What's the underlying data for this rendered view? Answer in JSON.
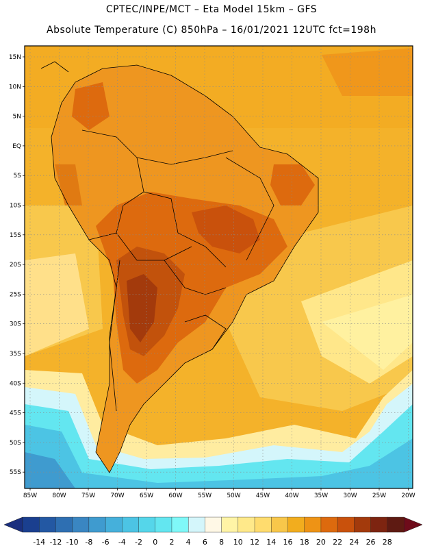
{
  "header": {
    "line1": "CPTEC/INPE/MCT –   Eta Model 15km – GFS",
    "line2": "Absolute Temperature (C) 850hPa – 16/01/2021 12UTC fct=198h"
  },
  "map": {
    "lat_labels": [
      "15N",
      "10N",
      "5N",
      "EQ",
      "5S",
      "10S",
      "15S",
      "20S",
      "25S",
      "30S",
      "35S",
      "40S",
      "45S",
      "50S",
      "55S"
    ],
    "lon_labels": [
      "85W",
      "80W",
      "75W",
      "70W",
      "65W",
      "60W",
      "55W",
      "50W",
      "45W",
      "40W",
      "35W",
      "30W",
      "25W",
      "20W"
    ]
  },
  "colorbar": {
    "labels": [
      "-14",
      "-12",
      "-10",
      "-8",
      "-6",
      "-4",
      "-2",
      "0",
      "2",
      "4",
      "6",
      "8",
      "10",
      "12",
      "14",
      "16",
      "18",
      "20",
      "22",
      "24",
      "26",
      "28"
    ],
    "colors": [
      "#1a3f8f",
      "#2358a3",
      "#2e6fb2",
      "#3a86c2",
      "#3f9bcf",
      "#45b0db",
      "#4cc4e4",
      "#55d6ea",
      "#63e6f0",
      "#7ff8f8",
      "#d4f6fb",
      "#fff8e6",
      "#fff4a6",
      "#ffe98a",
      "#ffdc6e",
      "#f8c74a",
      "#f2ad1e",
      "#ee9315",
      "#dd6a0e",
      "#c9510c",
      "#a33a0c",
      "#7d2410",
      "#5e1a12"
    ],
    "low_end_color": "#1a2f7f",
    "high_end_color": "#6e0b1a"
  },
  "colors": {
    "land_base": "#f0a020",
    "ocean_warm": "#f4b42a",
    "hot_core": "#b84f12",
    "cold_ocean": "#55d6ea",
    "border_line": "#000000"
  }
}
